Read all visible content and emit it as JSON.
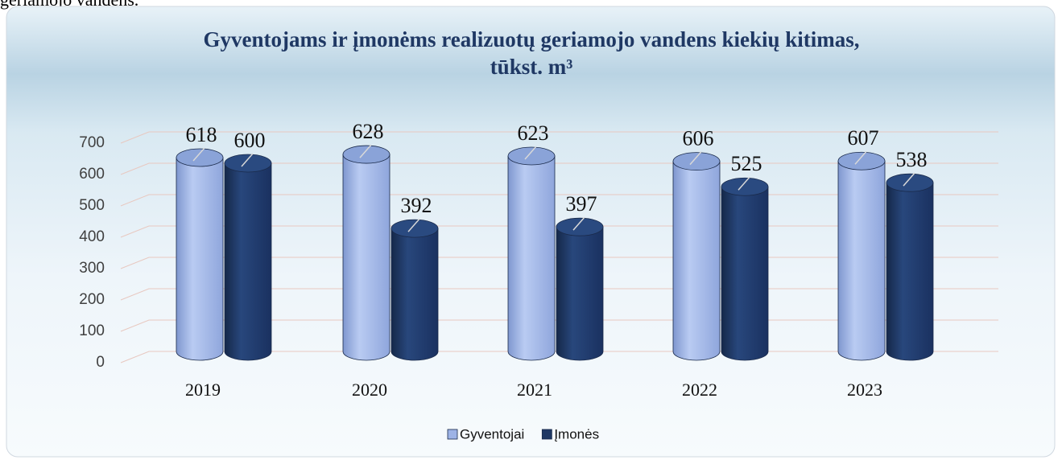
{
  "page_text": "geriamojo vandens.",
  "chart_data": {
    "type": "cylinder-bar",
    "title": "Gyventojams ir įmonėms realizuotų geriamojo vandens kiekių kitimas,",
    "subtitle": "tūkst. m³",
    "categories": [
      "2019",
      "2020",
      "2021",
      "2022",
      "2023"
    ],
    "series": [
      {
        "name": "Gyventojai",
        "color": "#9db3e6",
        "values": [
          618,
          628,
          623,
          606,
          607
        ]
      },
      {
        "name": "Įmonės",
        "color": "#1f3864",
        "values": [
          600,
          392,
          397,
          525,
          538
        ]
      }
    ],
    "ylim": [
      0,
      700
    ],
    "yticks": [
      0,
      100,
      200,
      300,
      400,
      500,
      600,
      700
    ],
    "grid": true,
    "legend": "bottom"
  }
}
